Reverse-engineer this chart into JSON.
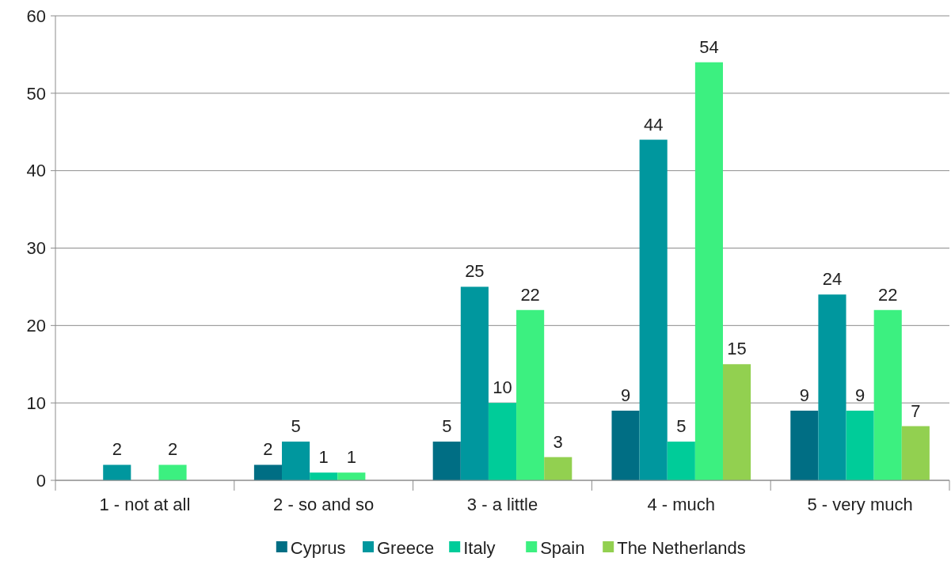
{
  "chart_data": {
    "type": "bar",
    "categories": [
      "1 - not at all",
      "2 - so and so",
      "3 - a little",
      "4 - much",
      "5 - very much"
    ],
    "series": [
      {
        "name": "Cyprus",
        "color": "#006e84",
        "values": [
          null,
          2,
          5,
          9,
          9
        ]
      },
      {
        "name": "Greece",
        "color": "#00979e",
        "values": [
          2,
          5,
          25,
          44,
          24
        ]
      },
      {
        "name": "Italy",
        "color": "#00cc99",
        "values": [
          null,
          1,
          10,
          5,
          9
        ]
      },
      {
        "name": "Spain",
        "color": "#3cf080",
        "values": [
          2,
          1,
          22,
          54,
          22
        ]
      },
      {
        "name": "The Netherlands",
        "color": "#92d050",
        "values": [
          null,
          null,
          3,
          15,
          7
        ]
      }
    ],
    "ylim": [
      0,
      60
    ],
    "yticks": [
      0,
      10,
      20,
      30,
      40,
      50,
      60
    ],
    "grid": "y",
    "legend": "bottom",
    "data_labels": true
  }
}
